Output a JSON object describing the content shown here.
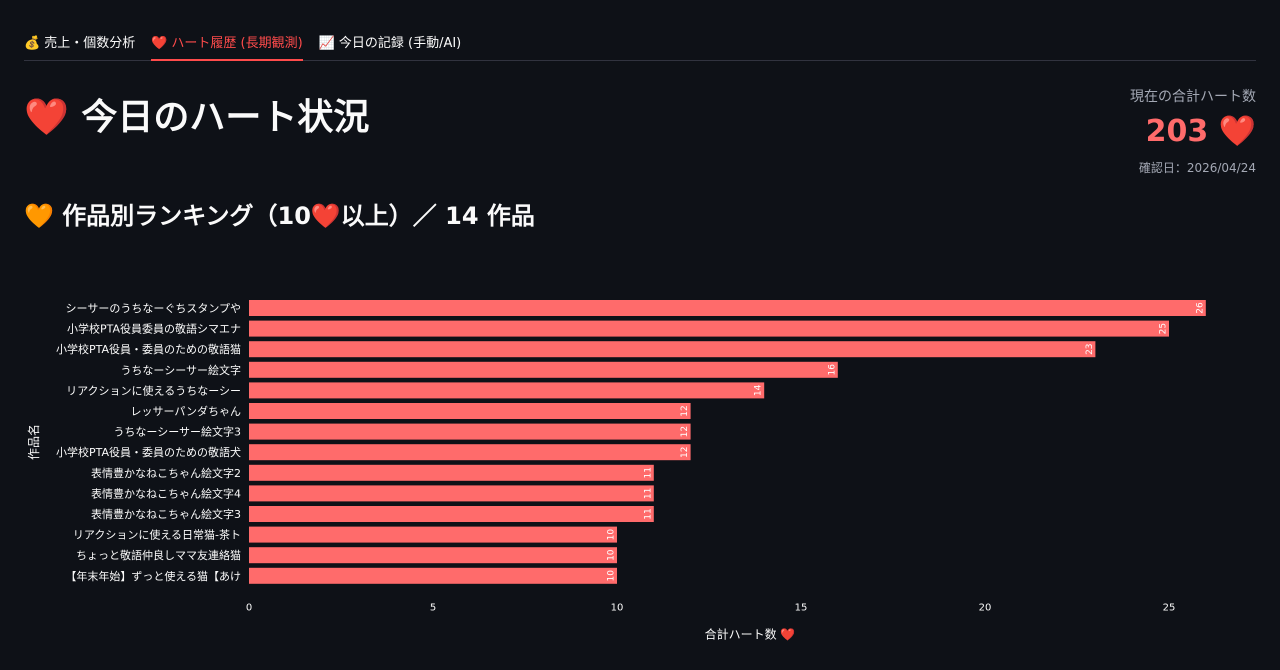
{
  "tabs": [
    {
      "icon": "💰",
      "label": "売上・個数分析",
      "active": false
    },
    {
      "icon": "❤️",
      "label": "ハート履歴 (長期観測)",
      "active": true
    },
    {
      "icon": "📈",
      "label": "今日の記録 (手動/AI)",
      "active": false
    }
  ],
  "page": {
    "title_icon": "❤️",
    "title": "今日のハート状況",
    "subtitle_icon": "🧡",
    "subtitle": "作品別ランキング（10❤️以上）／ 14 作品"
  },
  "metric": {
    "label": "現在の合計ハート数",
    "value": "203 ❤️",
    "date": "確認日：2026/04/24"
  },
  "colors": {
    "bar": "#ff6b6b",
    "accent": "#ff4b4b",
    "background": "#0e1117"
  },
  "chart_data": {
    "type": "bar",
    "orientation": "horizontal",
    "categories": [
      "シーサーのうちなーぐちスタンプや",
      "小学校PTA役員委員の敬語シマエナ",
      "小学校PTA役員・委員のための敬語猫",
      "うちなーシーサー絵文字",
      "リアクションに使えるうちなーシー",
      "レッサーパンダちゃん",
      "うちなーシーサー絵文字3",
      "小学校PTA役員・委員のための敬語犬",
      "表情豊かなねこちゃん絵文字2",
      "表情豊かなねこちゃん絵文字4",
      "表情豊かなねこちゃん絵文字3",
      "リアクションに使える日常猫-茶ト",
      "ちょっと敬語仲良しママ友連絡猫",
      "【年末年始】ずっと使える猫【あけ"
    ],
    "values": [
      26,
      25,
      23,
      16,
      14,
      12,
      12,
      12,
      11,
      11,
      11,
      10,
      10,
      10
    ],
    "xlabel": "合計ハート数 ❤️",
    "ylabel": "作品名",
    "xticks": [
      0,
      5,
      10,
      15,
      20,
      25
    ],
    "xlim": [
      0,
      27.3
    ],
    "grid": false
  }
}
